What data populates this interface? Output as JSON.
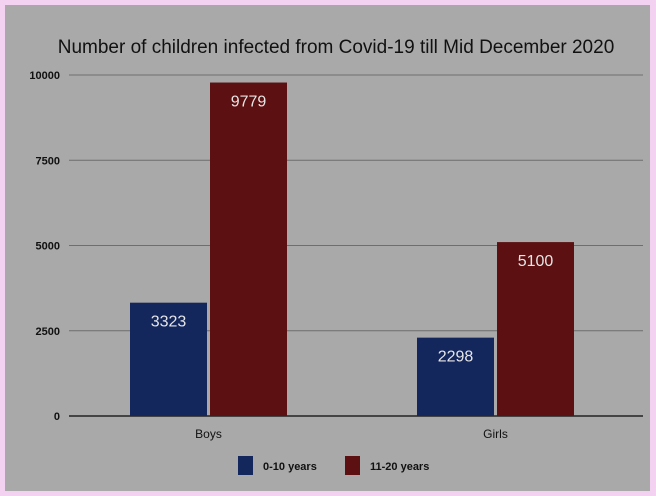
{
  "chart_data": {
    "type": "bar",
    "title": "Number of children infected from Covid-19 till Mid December 2020",
    "categories": [
      "Boys",
      "Girls"
    ],
    "series": [
      {
        "name": "0-10 years",
        "color": "#13275d",
        "values": [
          3323,
          2298
        ]
      },
      {
        "name": "11-20 years",
        "color": "#5c1011",
        "values": [
          9779,
          5100
        ]
      }
    ],
    "yticks": [
      "0",
      "2500",
      "5000",
      "7500",
      "10000"
    ],
    "ylim": [
      0,
      10000
    ],
    "grid": true,
    "legend_position": "bottom"
  }
}
